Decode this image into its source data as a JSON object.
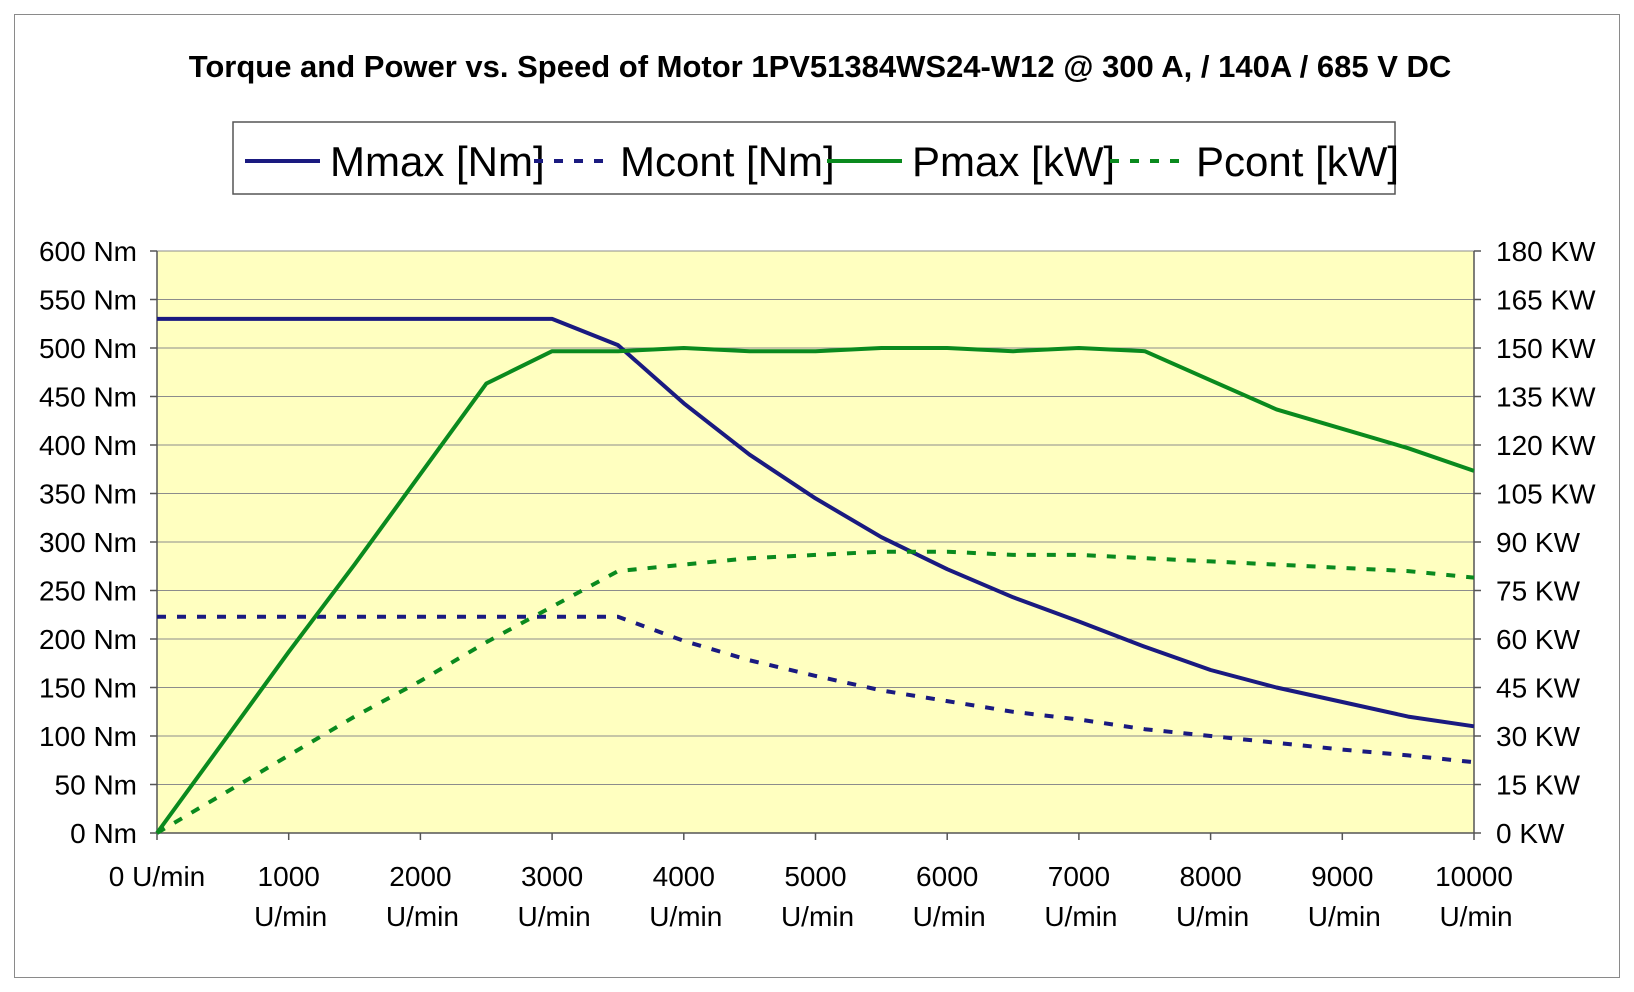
{
  "chart_data": {
    "type": "line",
    "title": "Torque and Power vs. Speed of Motor 1PV51384WS24-W12 @ 300 A, / 140A / 685 V DC",
    "xlabel": "",
    "ylabel": "",
    "y2label": "",
    "xlim": [
      0,
      10000
    ],
    "ylim": [
      0,
      600
    ],
    "y2lim": [
      0,
      180
    ],
    "grid": true,
    "legend_position": "top-center",
    "plot_background": "#FFFFC0",
    "x_ticks": [
      0,
      1000,
      2000,
      3000,
      4000,
      5000,
      6000,
      7000,
      8000,
      9000,
      10000
    ],
    "x_tick_labels": [
      {
        "line1": "0  U/min",
        "line2": ""
      },
      {
        "line1": "1000",
        "line2": "U/min"
      },
      {
        "line1": "2000",
        "line2": "U/min"
      },
      {
        "line1": "3000",
        "line2": "U/min"
      },
      {
        "line1": "4000",
        "line2": "U/min"
      },
      {
        "line1": "5000",
        "line2": "U/min"
      },
      {
        "line1": "6000",
        "line2": "U/min"
      },
      {
        "line1": "7000",
        "line2": "U/min"
      },
      {
        "line1": "8000",
        "line2": "U/min"
      },
      {
        "line1": "9000",
        "line2": "U/min"
      },
      {
        "line1": "10000",
        "line2": "U/min"
      }
    ],
    "y_ticks": [
      0,
      50,
      100,
      150,
      200,
      250,
      300,
      350,
      400,
      450,
      500,
      550,
      600
    ],
    "y_tick_labels": [
      "0  Nm",
      "50  Nm",
      "100  Nm",
      "150  Nm",
      "200  Nm",
      "250  Nm",
      "300  Nm",
      "350  Nm",
      "400  Nm",
      "450  Nm",
      "500  Nm",
      "550  Nm",
      "600  Nm"
    ],
    "y2_ticks": [
      0,
      15,
      30,
      45,
      60,
      75,
      90,
      105,
      120,
      135,
      150,
      165,
      180
    ],
    "y2_tick_labels": [
      "0  KW",
      "15  KW",
      "30  KW",
      "45  KW",
      "60  KW",
      "75  KW",
      "90  KW",
      "105  KW",
      "120  KW",
      "135  KW",
      "150  KW",
      "165  KW",
      "180  KW"
    ],
    "series": [
      {
        "name": "Mmax [Nm]",
        "axis": "left",
        "color": "#1A1A80",
        "dash": "solid",
        "x": [
          0,
          500,
          1000,
          1500,
          2000,
          2500,
          3000,
          3500,
          4000,
          4500,
          5000,
          5500,
          6000,
          6500,
          7000,
          7500,
          8000,
          8500,
          9000,
          9500,
          10000
        ],
        "y": [
          530,
          530,
          530,
          530,
          530,
          530,
          530,
          503,
          443,
          390,
          345,
          305,
          272,
          243,
          218,
          192,
          168,
          150,
          135,
          120,
          110
        ]
      },
      {
        "name": "Mcont [Nm]",
        "axis": "left",
        "color": "#1A1A80",
        "dash": "dotted",
        "x": [
          0,
          500,
          1000,
          1500,
          2000,
          2500,
          3000,
          3500,
          4000,
          4500,
          5000,
          5500,
          6000,
          6500,
          7000,
          7500,
          8000,
          8500,
          9000,
          9500,
          10000
        ],
        "y": [
          223,
          223,
          223,
          223,
          223,
          223,
          223,
          223,
          198,
          178,
          162,
          147,
          136,
          125,
          117,
          107,
          100,
          93,
          86,
          80,
          73
        ]
      },
      {
        "name": "Pmax [kW]",
        "axis": "right",
        "color": "#0A8A1E",
        "dash": "solid",
        "x": [
          0,
          500,
          1000,
          1500,
          2000,
          2500,
          3000,
          3500,
          4000,
          4500,
          5000,
          5500,
          6000,
          6500,
          7000,
          7500,
          8000,
          8500,
          9000,
          9500,
          10000
        ],
        "y": [
          0,
          28,
          56,
          83,
          111,
          139,
          149,
          149,
          150,
          149,
          149,
          150,
          150,
          149,
          150,
          149,
          140,
          131,
          125,
          119,
          112
        ]
      },
      {
        "name": "Pcont [kW]",
        "axis": "right",
        "color": "#0A8A1E",
        "dash": "dotted",
        "x": [
          0,
          500,
          1000,
          1500,
          2000,
          2500,
          3000,
          3500,
          4000,
          4500,
          5000,
          5500,
          6000,
          6500,
          7000,
          7500,
          8000,
          8500,
          9000,
          9500,
          10000
        ],
        "y": [
          0,
          12,
          24,
          36,
          47,
          59,
          70,
          81,
          83,
          85,
          86,
          87,
          87,
          86,
          86,
          85,
          84,
          83,
          82,
          81,
          79
        ]
      }
    ]
  }
}
